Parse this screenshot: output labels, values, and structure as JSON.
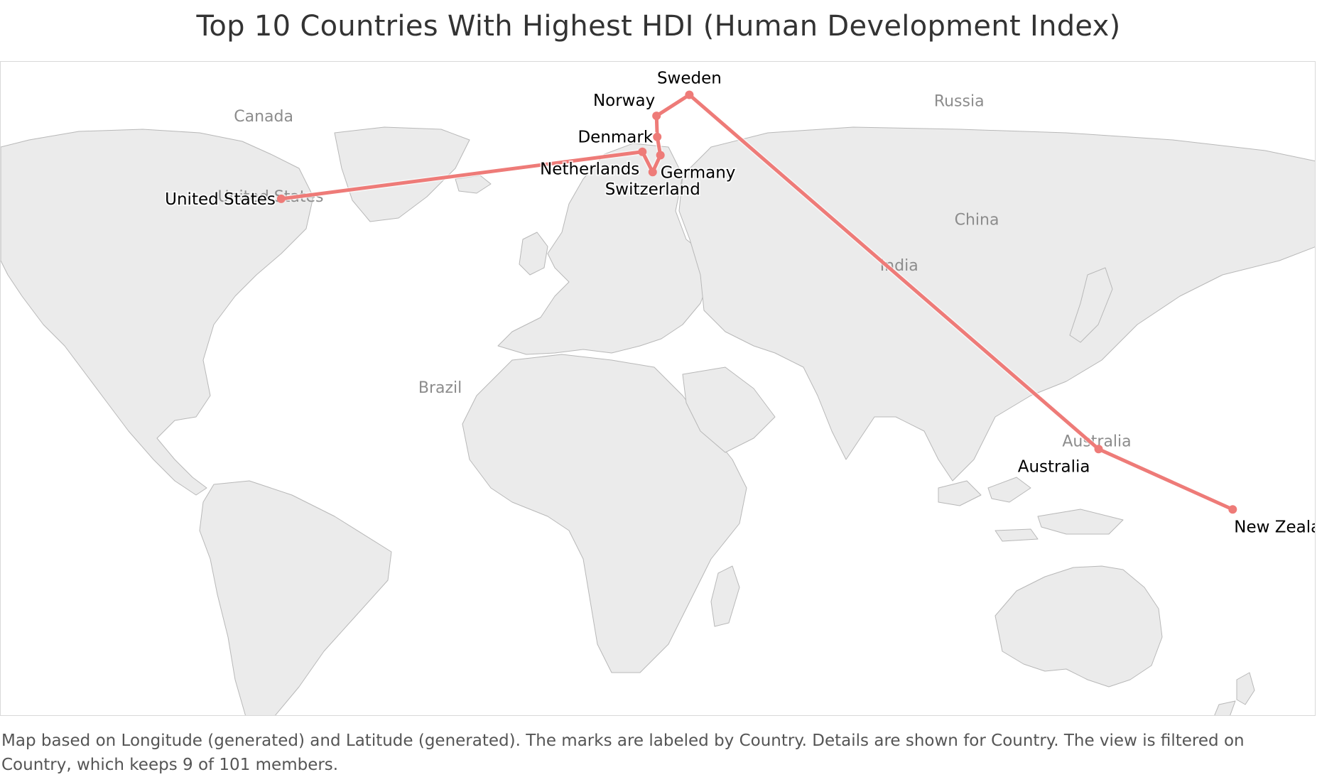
{
  "title": "Top 10 Countries With Highest HDI (Human Development Index)",
  "caption": "Map based on Longitude (generated) and Latitude (generated).  The marks are labeled by Country.  Details are shown for Country. The view is filtered on Country, which keeps 9 of 101 members.",
  "colors": {
    "route": "#ee7b78",
    "land": "#ebebeb",
    "water": "#ffffff",
    "border": "#b8b8b8",
    "base_label": "#8c8c8c",
    "mark_label": "#000000"
  },
  "base_labels": [
    {
      "text": "Canada",
      "lon": -102,
      "lat": 60
    },
    {
      "text": "Russia",
      "lon": 95,
      "lat": 64
    },
    {
      "text": "China",
      "lon": 100,
      "lat": 33
    },
    {
      "text": "India",
      "lon": 78,
      "lat": 21
    },
    {
      "text": "Brazil",
      "lon": -52,
      "lat": -11
    },
    {
      "text": "Australia",
      "lon": 134,
      "lat": -25
    },
    {
      "text": "United States",
      "lon": -100,
      "lat": 39
    }
  ],
  "chart_data": {
    "type": "map",
    "mark_type": "line",
    "points": [
      {
        "country": "United States",
        "lon": -97.0,
        "lat": 39.8
      },
      {
        "country": "Netherlands",
        "lon": 5.3,
        "lat": 52.1
      },
      {
        "country": "Switzerland",
        "lon": 8.2,
        "lat": 46.8
      },
      {
        "country": "Germany",
        "lon": 10.4,
        "lat": 51.2
      },
      {
        "country": "Denmark",
        "lon": 9.5,
        "lat": 56.0
      },
      {
        "country": "Norway",
        "lon": 9.3,
        "lat": 61.5
      },
      {
        "country": "Sweden",
        "lon": 18.6,
        "lat": 67.0
      },
      {
        "country": "Australia",
        "lon": 134.5,
        "lat": -25.7
      },
      {
        "country": "New Zealand",
        "lon": 172.5,
        "lat": -41.5
      }
    ]
  }
}
